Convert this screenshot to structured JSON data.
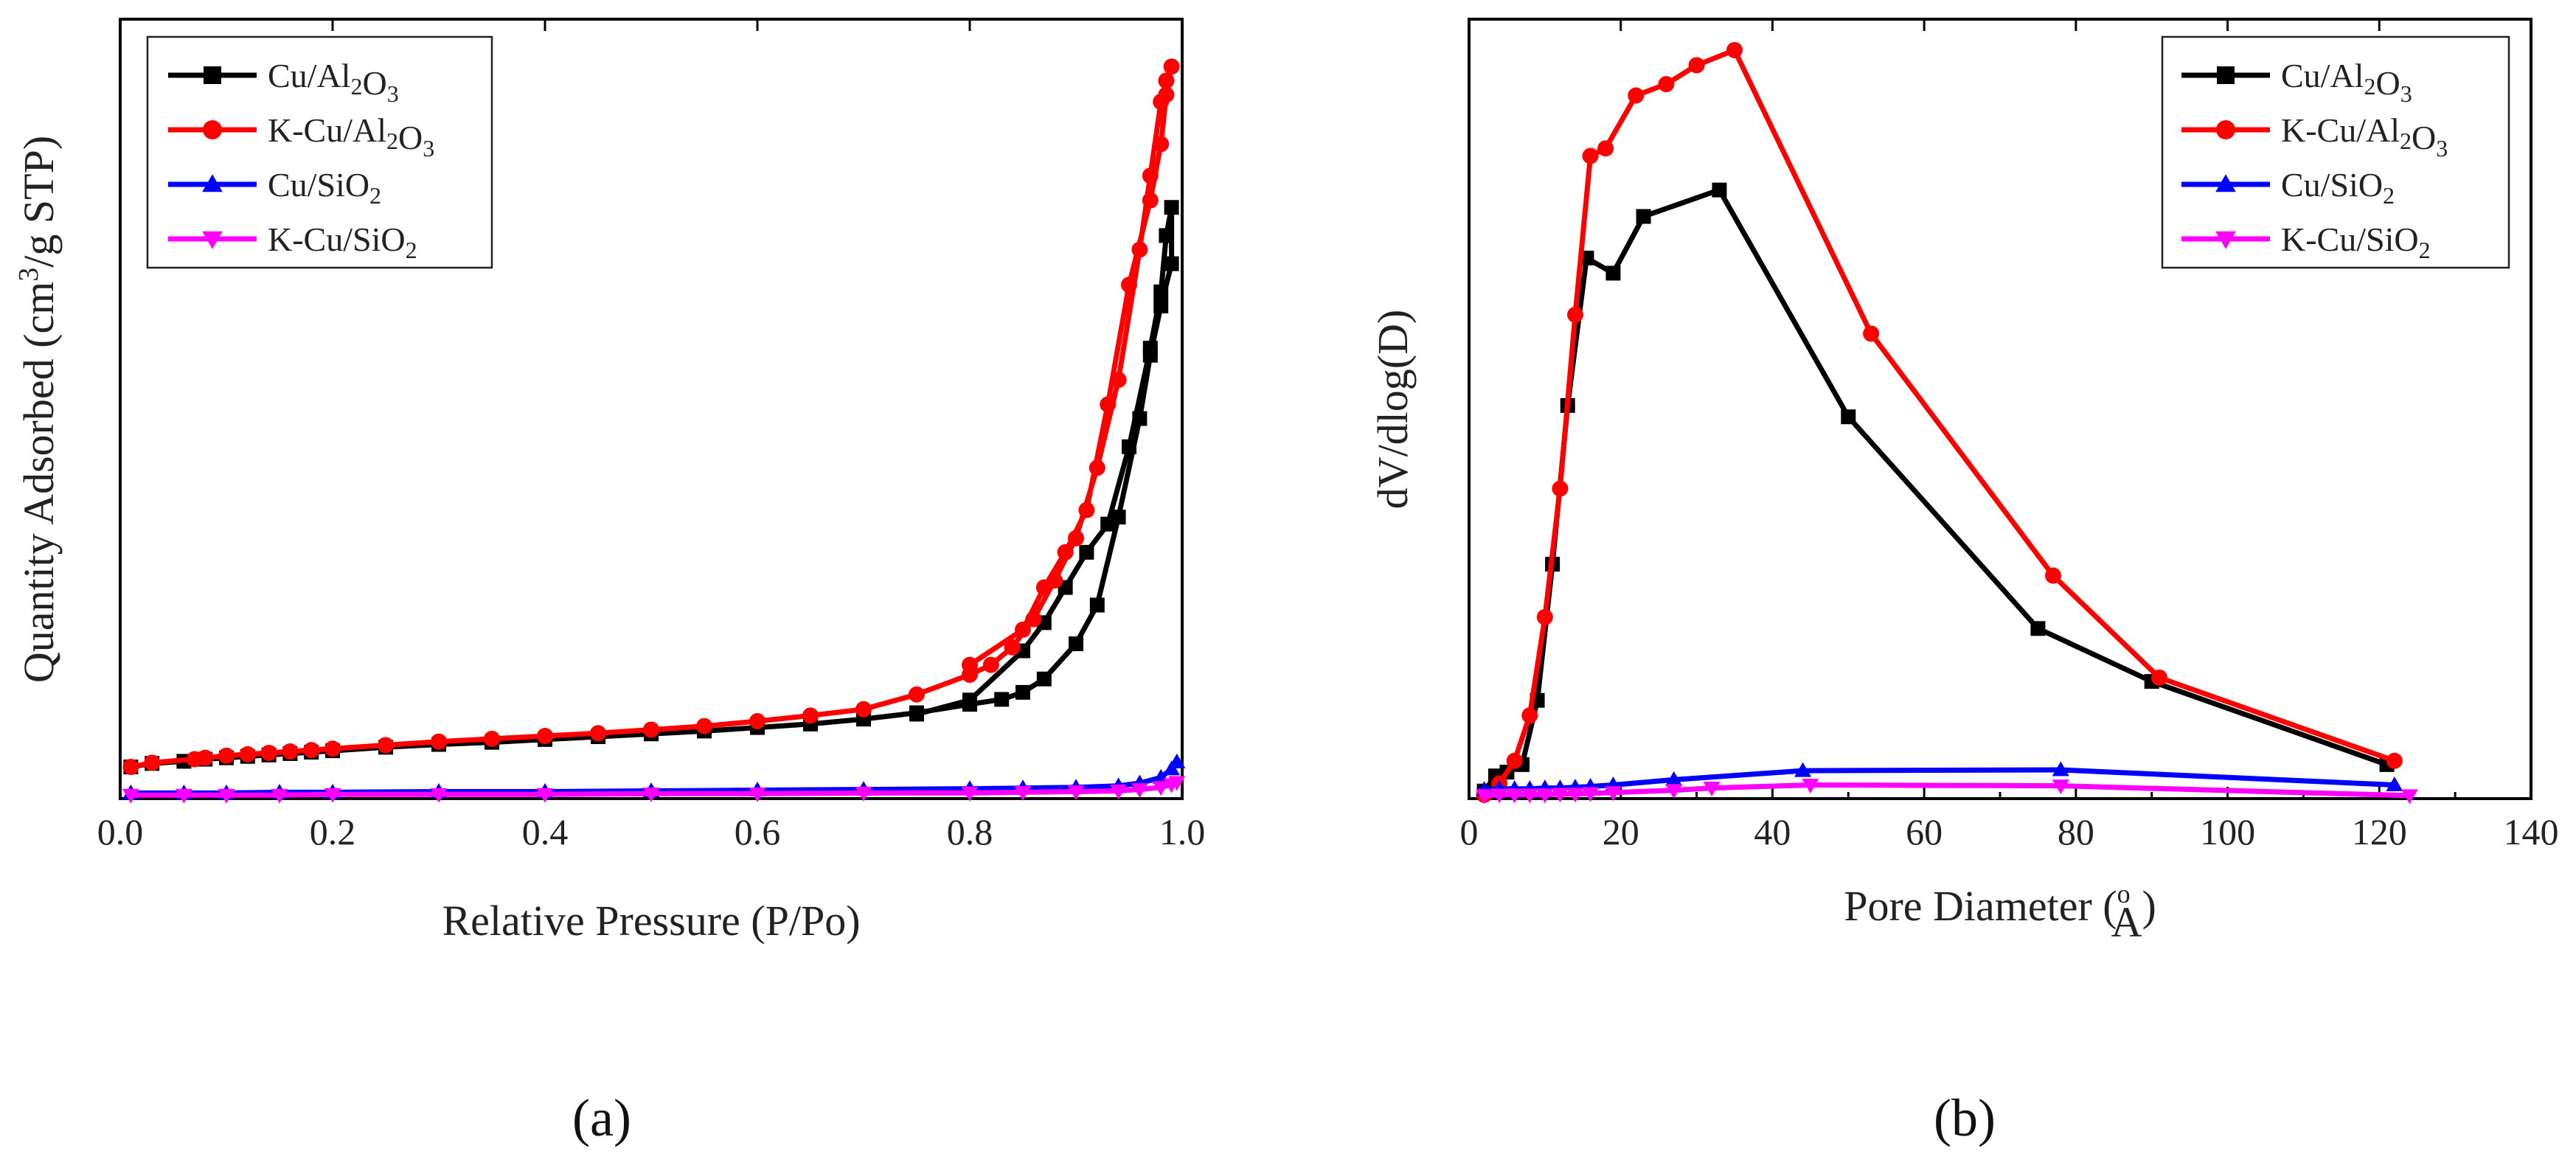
{
  "colors": {
    "Cu/Al2O3": "#000000",
    "K-Cu/Al2O3": "#ff0000",
    "Cu/SiO2": "#0000ff",
    "K-Cu/SiO2": "#ff00ff"
  },
  "panel_labels": [
    "(a)",
    "(b)"
  ],
  "chart_data": [
    {
      "type": "line",
      "panel": "(a)",
      "title": "",
      "xlabel": "Relative Pressure (P/Po)",
      "ylabel": "Quantity Adsorbed (cm3/g STP)",
      "xlim": [
        0.0,
        1.0
      ],
      "ylim": [
        0,
        100
      ],
      "xticks": [
        0.0,
        0.2,
        0.4,
        0.6,
        0.8,
        1.0
      ],
      "xtick_labels": [
        "0.0",
        "0.2",
        "0.4",
        "0.6",
        "0.8",
        "1.0"
      ],
      "yticks_shown": false,
      "legend_position": "top-left",
      "legend": [
        "Cu/Al2O3",
        "K-Cu/Al2O3",
        "Cu/SiO2",
        "K-Cu/SiO2"
      ],
      "series": [
        {
          "name": "Cu/Al2O3",
          "marker": "square",
          "x": [
            0.01,
            0.03,
            0.06,
            0.08,
            0.1,
            0.12,
            0.14,
            0.16,
            0.18,
            0.2,
            0.25,
            0.3,
            0.35,
            0.4,
            0.45,
            0.5,
            0.55,
            0.6,
            0.65,
            0.7,
            0.75,
            0.8,
            0.83,
            0.85,
            0.87,
            0.9,
            0.92,
            0.94,
            0.96,
            0.97,
            0.98,
            0.99,
            0.99,
            0.985,
            0.98,
            0.97,
            0.95,
            0.93,
            0.91,
            0.89,
            0.87,
            0.85,
            0.8,
            0.75
          ],
          "y": [
            4.5,
            5.0,
            5.3,
            5.6,
            5.8,
            6.0,
            6.2,
            6.4,
            6.6,
            6.8,
            7.3,
            7.7,
            8.0,
            8.4,
            8.8,
            9.2,
            9.6,
            10.1,
            10.6,
            11.3,
            12.2,
            13.4,
            14.1,
            15.1,
            17.0,
            22.0,
            27.5,
            40.0,
            54.0,
            63.0,
            70.0,
            76.0,
            84.0,
            80.0,
            72.0,
            64.0,
            50.0,
            39.0,
            35.0,
            30.0,
            25.0,
            21.0,
            14.0,
            12.0
          ]
        },
        {
          "name": "K-Cu/Al2O3",
          "marker": "circle",
          "x": [
            0.01,
            0.03,
            0.07,
            0.08,
            0.1,
            0.12,
            0.14,
            0.16,
            0.18,
            0.2,
            0.25,
            0.3,
            0.35,
            0.4,
            0.45,
            0.5,
            0.55,
            0.6,
            0.65,
            0.7,
            0.75,
            0.8,
            0.82,
            0.84,
            0.86,
            0.88,
            0.9,
            0.92,
            0.94,
            0.96,
            0.97,
            0.98,
            0.985,
            0.99,
            0.985,
            0.98,
            0.97,
            0.95,
            0.93,
            0.91,
            0.89,
            0.87,
            0.85,
            0.8
          ],
          "y": [
            4.5,
            5.1,
            5.6,
            5.8,
            6.1,
            6.3,
            6.5,
            6.7,
            6.9,
            7.1,
            7.6,
            8.1,
            8.5,
            8.9,
            9.3,
            9.8,
            10.3,
            11.0,
            11.8,
            12.7,
            14.8,
            17.6,
            19.0,
            21.5,
            25.5,
            31.0,
            37.0,
            47.0,
            59.5,
            78.0,
            88.5,
            99.0,
            102.0,
            104.0,
            100.0,
            93.0,
            85.0,
            73.0,
            56.0,
            41.0,
            35.0,
            30.0,
            24.0,
            19.0
          ]
        },
        {
          "name": "Cu/SiO2",
          "marker": "triangle-up",
          "x": [
            0.01,
            0.06,
            0.1,
            0.15,
            0.2,
            0.3,
            0.4,
            0.5,
            0.6,
            0.7,
            0.8,
            0.85,
            0.9,
            0.94,
            0.96,
            0.98,
            0.99,
            0.995
          ],
          "y": [
            0.8,
            0.8,
            0.8,
            0.9,
            0.9,
            1.0,
            1.0,
            1.1,
            1.2,
            1.3,
            1.4,
            1.5,
            1.6,
            1.8,
            2.2,
            3.0,
            4.2,
            5.2
          ]
        },
        {
          "name": "K-Cu/SiO2",
          "marker": "triangle-down",
          "x": [
            0.01,
            0.06,
            0.1,
            0.15,
            0.2,
            0.3,
            0.4,
            0.5,
            0.6,
            0.7,
            0.8,
            0.85,
            0.9,
            0.94,
            0.96,
            0.98,
            0.99,
            0.995
          ],
          "y": [
            0.5,
            0.5,
            0.5,
            0.5,
            0.6,
            0.6,
            0.6,
            0.7,
            0.7,
            0.8,
            0.8,
            0.9,
            1.0,
            1.1,
            1.3,
            1.6,
            2.0,
            2.3
          ]
        }
      ]
    },
    {
      "type": "line",
      "panel": "(b)",
      "title": "",
      "xlabel": "Pore Diameter (Å)",
      "ylabel": "dV/dlog(D)",
      "xlim": [
        0,
        140
      ],
      "ylim": [
        0,
        100
      ],
      "xticks": [
        0,
        20,
        40,
        60,
        80,
        100,
        120,
        140
      ],
      "xtick_labels": [
        "0",
        "20",
        "40",
        "60",
        "80",
        "100",
        "120",
        "140"
      ],
      "yticks_shown": false,
      "legend_position": "top-right",
      "legend": [
        "Cu/Al2O3",
        "K-Cu/Al2O3",
        "Cu/SiO2",
        "K-Cu/SiO2"
      ],
      "series": [
        {
          "name": "Cu/Al2O3",
          "marker": "square",
          "x": [
            2,
            3.5,
            5,
            7,
            9,
            11,
            13,
            15.5,
            19,
            23,
            33,
            50,
            75,
            90,
            121
          ],
          "y": [
            1.0,
            3.0,
            3.5,
            4.5,
            13.0,
            31.0,
            52.0,
            71.5,
            69.5,
            77.0,
            80.5,
            50.5,
            22.5,
            15.5,
            4.5
          ]
        },
        {
          "name": "K-Cu/Al2O3",
          "marker": "circle",
          "x": [
            2,
            4,
            6,
            8,
            10,
            12,
            14,
            16,
            18,
            22,
            26,
            30,
            35,
            53,
            77,
            91,
            122
          ],
          "y": [
            0.5,
            2.0,
            5.0,
            11.0,
            24.0,
            41.0,
            64.0,
            85.0,
            86.0,
            93.0,
            94.5,
            97.0,
            99.0,
            61.5,
            29.5,
            16.0,
            5.0
          ]
        },
        {
          "name": "Cu/SiO2",
          "marker": "triangle-up",
          "x": [
            2,
            4,
            6,
            8,
            10,
            12,
            14,
            16,
            19,
            27,
            44,
            78,
            122
          ],
          "y": [
            1.2,
            1.3,
            1.3,
            1.3,
            1.4,
            1.4,
            1.5,
            1.6,
            1.8,
            2.5,
            3.7,
            3.8,
            1.8
          ]
        },
        {
          "name": "K-Cu/SiO2",
          "marker": "triangle-down",
          "x": [
            2,
            4,
            6,
            8,
            10,
            12,
            14,
            16,
            19,
            27,
            32,
            45,
            78,
            124
          ],
          "y": [
            0.4,
            0.5,
            0.5,
            0.5,
            0.5,
            0.6,
            0.6,
            0.7,
            0.8,
            1.1,
            1.4,
            1.8,
            1.7,
            0.4
          ]
        }
      ]
    }
  ]
}
